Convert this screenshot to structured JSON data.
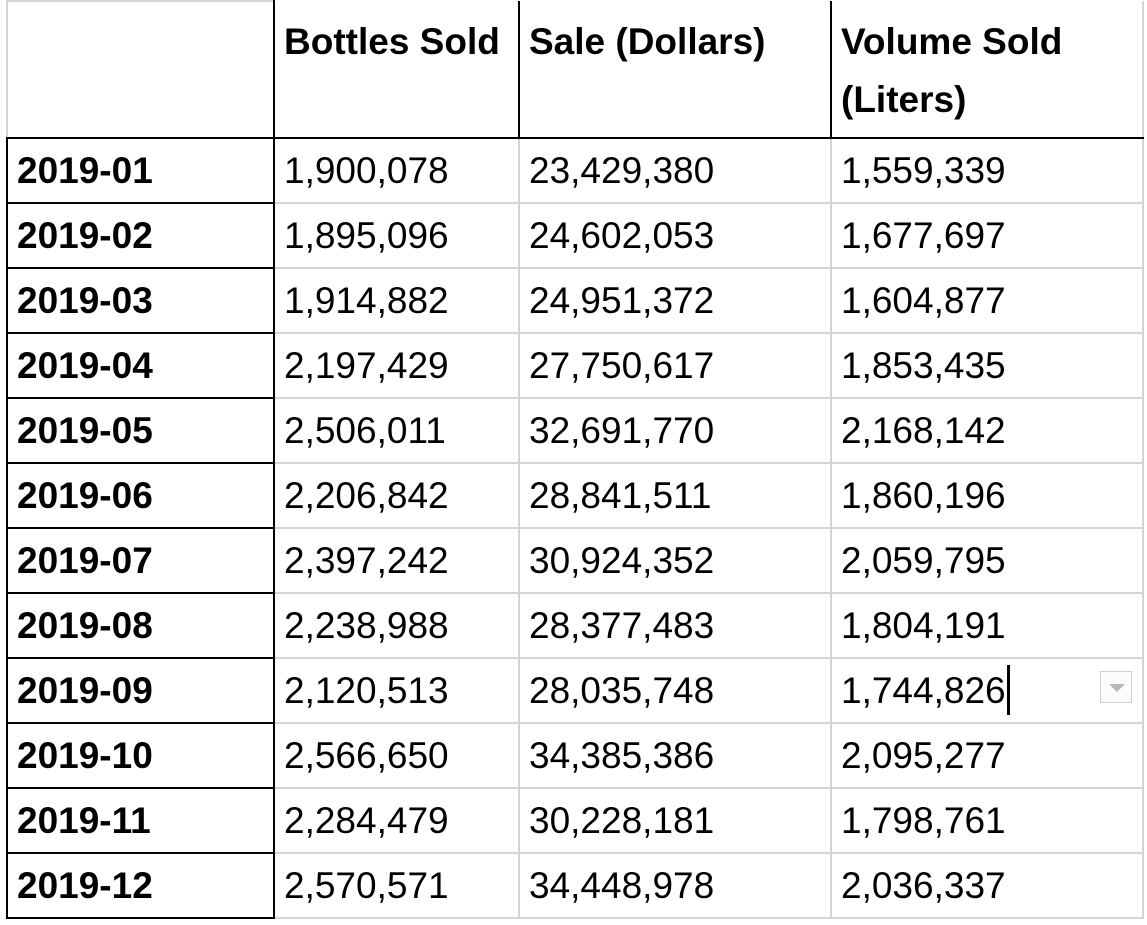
{
  "table": {
    "headers": [
      "",
      "Bottles Sold",
      "Sale (Dollars)",
      "Volume Sold (Liters)"
    ],
    "rows": [
      {
        "month": "2019-01",
        "bottles": "1,900,078",
        "sale": "23,429,380",
        "volume": "1,559,339"
      },
      {
        "month": "2019-02",
        "bottles": "1,895,096",
        "sale": "24,602,053",
        "volume": "1,677,697"
      },
      {
        "month": "2019-03",
        "bottles": "1,914,882",
        "sale": "24,951,372",
        "volume": "1,604,877"
      },
      {
        "month": "2019-04",
        "bottles": "2,197,429",
        "sale": "27,750,617",
        "volume": "1,853,435"
      },
      {
        "month": "2019-05",
        "bottles": "2,506,011",
        "sale": "32,691,770",
        "volume": "2,168,142"
      },
      {
        "month": "2019-06",
        "bottles": "2,206,842",
        "sale": "28,841,511",
        "volume": "1,860,196"
      },
      {
        "month": "2019-07",
        "bottles": "2,397,242",
        "sale": "30,924,352",
        "volume": "2,059,795"
      },
      {
        "month": "2019-08",
        "bottles": "2,238,988",
        "sale": "28,377,483",
        "volume": "1,804,191"
      },
      {
        "month": "2019-09",
        "bottles": "2,120,513",
        "sale": "28,035,748",
        "volume": "1,744,826"
      },
      {
        "month": "2019-10",
        "bottles": "2,566,650",
        "sale": "34,385,386",
        "volume": "2,095,277"
      },
      {
        "month": "2019-11",
        "bottles": "2,284,479",
        "sale": "30,228,181",
        "volume": "1,798,761"
      },
      {
        "month": "2019-12",
        "bottles": "2,570,571",
        "sale": "34,448,978",
        "volume": "2,036,337"
      }
    ],
    "active_cell": {
      "row": 8,
      "column": "volume"
    }
  },
  "icons": {
    "filter": "chevron-down-icon"
  },
  "colors": {
    "grid_line": "#d4d4d4",
    "border": "#000000",
    "text": "#000000",
    "background": "#ffffff"
  }
}
